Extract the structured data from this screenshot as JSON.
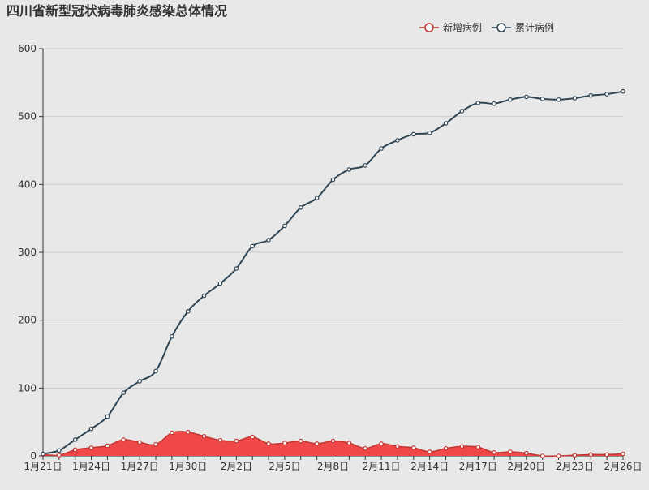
{
  "chart_data": {
    "type": "line",
    "title": "四川省新型冠状病毒肺炎感染总体情况",
    "legend": {
      "position": "top-right",
      "items": [
        {
          "name": "新增病例",
          "color": "#c23531"
        },
        {
          "name": "累计病例",
          "color": "#2f4554"
        }
      ]
    },
    "categories": [
      "1月21日",
      "1月22日",
      "1月23日",
      "1月24日",
      "1月25日",
      "1月26日",
      "1月27日",
      "1月28日",
      "1月29日",
      "1月30日",
      "1月31日",
      "2月1日",
      "2月2日",
      "2月3日",
      "2月4日",
      "2月5日",
      "2月6日",
      "2月7日",
      "2月8日",
      "2月9日",
      "2月10日",
      "2月11日",
      "2月12日",
      "2月13日",
      "2月14日",
      "2月15日",
      "2月16日",
      "2月17日",
      "2月18日",
      "2月19日",
      "2月20日",
      "2月21日",
      "2月22日",
      "2月23日",
      "2月24日",
      "2月25日",
      "2月26日"
    ],
    "x_tick_labels": [
      "1月21日",
      "1月24日",
      "1月27日",
      "1月30日",
      "2月2日",
      "2月5日",
      "2月8日",
      "2月11日",
      "2月14日",
      "2月17日",
      "2月20日",
      "2月23日",
      "2月26日"
    ],
    "ylim": [
      0,
      600
    ],
    "yticks": [
      0,
      100,
      200,
      300,
      400,
      500,
      600
    ],
    "grid": true,
    "series": [
      {
        "name": "新增病例",
        "color": "#c23531",
        "area": true,
        "area_color": "#f04848",
        "values": [
          2,
          1,
          9,
          12,
          15,
          24,
          20,
          17,
          34,
          35,
          29,
          23,
          22,
          28,
          18,
          19,
          22,
          18,
          22,
          19,
          11,
          18,
          14,
          12,
          6,
          11,
          14,
          13,
          5,
          6,
          4,
          0,
          0,
          1,
          2,
          2,
          3
        ]
      },
      {
        "name": "累计病例",
        "color": "#2f4554",
        "area": false,
        "values": [
          3,
          8,
          24,
          40,
          58,
          93,
          110,
          125,
          176,
          213,
          236,
          254,
          276,
          309,
          318,
          339,
          366,
          380,
          407,
          422,
          428,
          453,
          465,
          474,
          476,
          490,
          508,
          520,
          519,
          525,
          529,
          526,
          525,
          527,
          531,
          533,
          537
        ]
      }
    ]
  }
}
